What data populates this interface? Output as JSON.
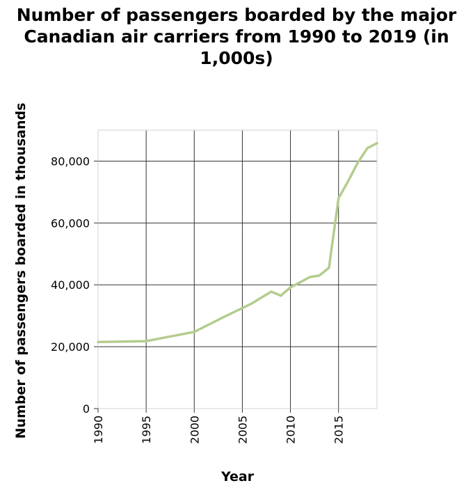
{
  "chart_data": {
    "type": "line",
    "title_lines": [
      "Number of passengers boarded by the major",
      "Canadian air carriers from 1990 to 2019 (in",
      "1,000s)"
    ],
    "xlabel": "Year",
    "ylabel": "Number of passengers boarded in thousands",
    "xlim": [
      1990,
      2019
    ],
    "ylim": [
      0,
      90000
    ],
    "x_ticks": [
      1990,
      1995,
      2000,
      2005,
      2010,
      2015
    ],
    "x_tick_labels": [
      "1990",
      "1995",
      "2000",
      "2005",
      "2010",
      "2015"
    ],
    "y_ticks": [
      0,
      20000,
      40000,
      60000,
      80000
    ],
    "y_tick_labels": [
      "0",
      "20,000",
      "40,000",
      "60,000",
      "80,000"
    ],
    "grid": true,
    "line_color": "#b5cc8e",
    "series": [
      {
        "x": [
          1990,
          1995,
          2000,
          2003,
          2006,
          2008,
          2009,
          2010,
          2011,
          2012,
          2013,
          2014,
          2015,
          2016,
          2017,
          2018,
          2019
        ],
        "y": [
          21500,
          21800,
          24800,
          29500,
          34000,
          37800,
          36500,
          39200,
          40800,
          42500,
          43000,
          45500,
          68000,
          73500,
          79500,
          84200,
          85800
        ]
      }
    ]
  }
}
